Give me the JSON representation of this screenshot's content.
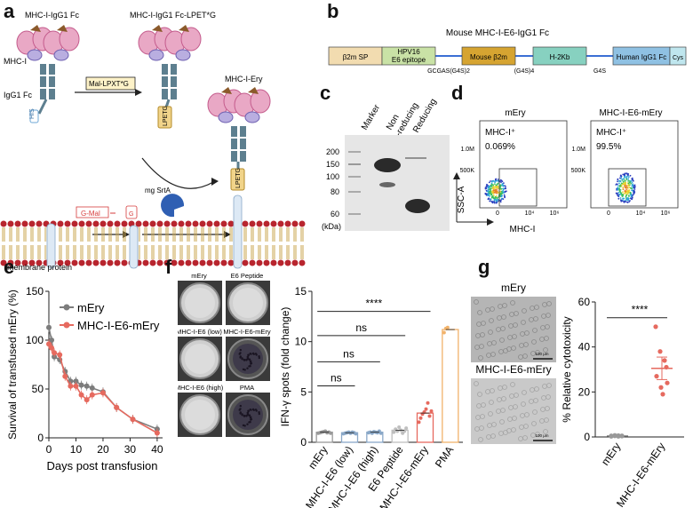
{
  "panels": {
    "a": "a",
    "b": "b",
    "c": "c",
    "d": "d",
    "e": "e",
    "f": "f",
    "g": "g"
  },
  "panel_a": {
    "label_mhc_fc_left": "MHC-I-IgG1 Fc",
    "label_mhc_fc_lpetg": "MHC-I-IgG1 Fc-LPET*G",
    "label_mhc_i": "MHC-I",
    "label_igg1_fc": "IgG1 Fc",
    "label_mal_lpxtg": "Mal-LPXT*G",
    "label_mhc_ery": "MHC-I-Ery",
    "label_mg_srta": "mg SrtA",
    "label_g_mal": "G-Mal",
    "label_membrane_protein": "membrane protein",
    "tag_his": "HIS",
    "tag_lpet": "LPETG",
    "tag_g": "G"
  },
  "panel_b": {
    "title": "Mouse MHC-I-E6-IgG1 Fc",
    "segments": [
      "β2m SP",
      "HPV16 E6 epitope",
      "Mouse β2m",
      "H-2Kb",
      "Human IgG1 Fc",
      "Cys"
    ],
    "linkers": [
      "GCGAS(G4S)2",
      "(G4S)4",
      "G4S"
    ],
    "colors": [
      "#f2dcb0",
      "#c9e2a6",
      "#d6a431",
      "#87d1c0",
      "#8fc1e3",
      "#bfe6ee"
    ]
  },
  "panel_c": {
    "lanes": [
      "Marker",
      "Non\n-reducing",
      "Reducing"
    ],
    "lane_top_labels": [
      "Marker",
      "Non",
      "-reducing",
      "Reducing"
    ],
    "mw_ticks": [
      "200",
      "150",
      "100",
      "80",
      "60"
    ],
    "unit": "(kDa)"
  },
  "panel_d": {
    "plots": [
      {
        "title": "mEry",
        "gate_label": "MHC-I⁺",
        "percent": "0.069%"
      },
      {
        "title": "MHC-I-E6-mEry",
        "gate_label": "MHC-I⁺",
        "percent": "99.5%"
      }
    ],
    "y_axis": "SSC-A",
    "x_axis": "MHC-I",
    "y_ticks": [
      "1.0M",
      "500K",
      "0"
    ],
    "x_ticks": [
      "0",
      "10⁴",
      "10⁶"
    ]
  },
  "chart_data": [
    {
      "type": "line",
      "panel": "e",
      "xlabel": "Days post transfusion",
      "ylabel": "Survival of transfused mEry (%)",
      "xlim": [
        0,
        42
      ],
      "ylim": [
        0,
        150
      ],
      "x_ticks": [
        "0",
        "10",
        "20",
        "30",
        "40"
      ],
      "y_ticks": [
        "0",
        "50",
        "100",
        "150"
      ],
      "legend_position": "top-right",
      "series": [
        {
          "name": "mEry",
          "color": "#7d7d7d",
          "x": [
            0,
            1,
            2,
            4,
            6,
            8,
            10,
            12,
            14,
            16,
            20,
            25,
            31,
            40
          ],
          "y": [
            113,
            100,
            83,
            80,
            68,
            58,
            58,
            54,
            53,
            51,
            47,
            31,
            19,
            9
          ]
        },
        {
          "name": "MHC-I-E6-mEry",
          "color": "#e66a5f",
          "x": [
            0,
            1,
            2,
            4,
            6,
            8,
            10,
            12,
            14,
            16,
            20,
            25,
            31,
            40
          ],
          "y": [
            96,
            92,
            87,
            85,
            63,
            53,
            53,
            44,
            39,
            44,
            46,
            31,
            19,
            5
          ]
        }
      ]
    },
    {
      "type": "bar",
      "panel": "f",
      "ylabel": "IFN-γ spots (fold change)",
      "ylim": [
        0,
        15
      ],
      "y_ticks": [
        "0",
        "5",
        "10",
        "15"
      ],
      "categories": [
        "mEry",
        "MHC-I-E6 (low)",
        "MHC-I-E6 (high)",
        "E6 Peptide",
        "MHC-I-E6-mEry",
        "PMA"
      ],
      "values": [
        1.0,
        0.95,
        1.0,
        1.2,
        2.9,
        11.2
      ],
      "bar_colors": [
        "#999999",
        "#8aa8c8",
        "#8aa8c8",
        "#bfbfbf",
        "#e66a5f",
        "#f2b36b"
      ],
      "points": [
        [
          0.9,
          0.95,
          1.0,
          1.05,
          1.1,
          0.95,
          1.0,
          0.9
        ],
        [
          0.85,
          0.9,
          0.95,
          1.0,
          0.9,
          1.0,
          0.95,
          0.85
        ],
        [
          0.95,
          1.0,
          0.9,
          1.05,
          1.0,
          0.95,
          1.1,
          0.9
        ],
        [
          1.0,
          1.3,
          1.1,
          1.5,
          1.2,
          0.9,
          1.1,
          1.4
        ],
        [
          2.0,
          2.4,
          2.8,
          3.0,
          3.3,
          3.9,
          2.6,
          3.1
        ],
        [
          10.9,
          11.3,
          11.4
        ]
      ],
      "comparisons": [
        {
          "from": 0,
          "to": 4,
          "label": "****"
        },
        {
          "from": 0,
          "to": 3,
          "label": "ns"
        },
        {
          "from": 0,
          "to": 2,
          "label": "ns"
        },
        {
          "from": 0,
          "to": 1,
          "label": "ns"
        }
      ],
      "elispot_images": [
        {
          "label": "mEry",
          "dark": false
        },
        {
          "label": "E6 Peptide",
          "dark": false
        },
        {
          "label": "MHC-I-E6 (low)",
          "dark": false
        },
        {
          "label": "MHC-I-E6-mEry",
          "dark": true
        },
        {
          "label": "MHC-I-E6 (high)",
          "dark": false
        },
        {
          "label": "PMA",
          "dark": true
        }
      ]
    },
    {
      "type": "scatter",
      "panel": "g",
      "ylabel": "% Relative cytotoxicity",
      "ylim": [
        0,
        60
      ],
      "y_ticks": [
        "0",
        "20",
        "40",
        "60"
      ],
      "categories": [
        "mEry",
        "MHC-I-E6-mEry"
      ],
      "means": [
        0.5,
        30.5
      ],
      "errors": [
        0.2,
        5
      ],
      "colors": [
        "#999999",
        "#e66a5f"
      ],
      "points": [
        [
          0.3,
          0.5,
          0.6,
          0.4,
          0.5,
          0.7,
          0.3,
          0.5
        ],
        [
          49,
          38,
          34,
          31,
          27,
          22,
          19,
          24
        ]
      ],
      "significance": "****",
      "micrographs": [
        {
          "label": "mEry",
          "scale": "100 μm"
        },
        {
          "label": "MHC-I-E6-mEry",
          "scale": "100 μm"
        }
      ]
    }
  ]
}
